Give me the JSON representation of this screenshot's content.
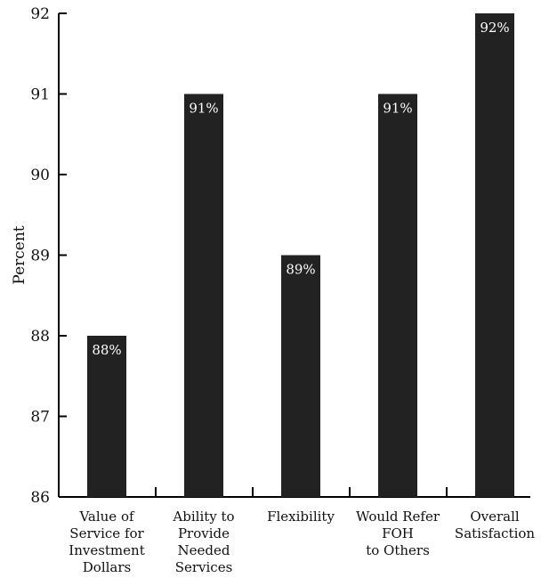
{
  "chart_data": {
    "type": "bar",
    "ylabel": "Percent",
    "ylim": [
      86,
      92
    ],
    "yticks": [
      86,
      87,
      88,
      89,
      90,
      91,
      92
    ],
    "categories": [
      [
        "Value of",
        "Service for",
        "Investment",
        "Dollars"
      ],
      [
        "Ability to",
        "Provide",
        "Needed",
        "Services"
      ],
      [
        "Flexibility"
      ],
      [
        "Would Refer",
        "FOH",
        "to Others"
      ],
      [
        "Overall",
        "Satisfaction"
      ]
    ],
    "values": [
      88,
      91,
      89,
      91,
      92
    ],
    "data_labels": [
      "88%",
      "91%",
      "89%",
      "91%",
      "92%"
    ],
    "bar_color": "#222222",
    "grid": false,
    "legend": "none"
  }
}
